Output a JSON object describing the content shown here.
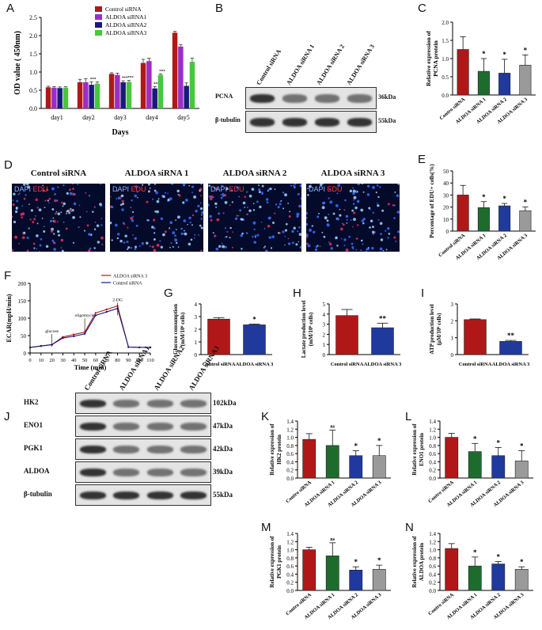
{
  "colors": {
    "control": "#b01818",
    "s1": "#9b2fc1",
    "s2": "#1a1a7a",
    "s3": "#46c83c",
    "green_bar": "#1e6b2e",
    "grey_bar": "#9a9a9a",
    "blue_bar": "#1f3a9c"
  },
  "panels": {
    "A": {
      "letter": "A"
    },
    "B": {
      "letter": "B",
      "lanes": [
        "Control siRNA",
        "ALDOA siRNA 1",
        "ALDOA siRNA 2",
        "ALDOA siRNA 3"
      ],
      "rows": [
        {
          "label": "PCNA",
          "size": "36kDa"
        },
        {
          "label": "β-tubulin",
          "size": "55kDa"
        }
      ]
    },
    "C": {
      "letter": "C"
    },
    "D": {
      "letter": "D",
      "titles": [
        "Control siRNA",
        "ALDOA siRNA 1",
        "ALDOA siRNA 2",
        "ALDOA siRNA 3"
      ],
      "dapi": "DAPI",
      "edu": "EDU"
    },
    "E": {
      "letter": "E"
    },
    "F": {
      "letter": "F"
    },
    "G": {
      "letter": "G"
    },
    "H": {
      "letter": "H"
    },
    "I": {
      "letter": "I"
    },
    "J": {
      "letter": "J",
      "lanes": [
        "Control siRNA",
        "ALDOA siRNA1",
        "ALDOA siRNA2",
        "ALDOA siRNA3"
      ],
      "rows": [
        {
          "label": "HK2",
          "size": "102kDa"
        },
        {
          "label": "ENO1",
          "size": "47kDa"
        },
        {
          "label": "PGK1",
          "size": "42kDa"
        },
        {
          "label": "ALDOA",
          "size": "39kDa"
        },
        {
          "label": "β-tubulin",
          "size": "55kDa"
        }
      ]
    },
    "K": {
      "letter": "K"
    },
    "L": {
      "letter": "L"
    },
    "M": {
      "letter": "M"
    },
    "N": {
      "letter": "N"
    }
  },
  "chart_data": [
    {
      "id": "A",
      "type": "bar",
      "ylabel": "OD value ( 450nm)",
      "xlabel": "Days",
      "categories": [
        "day1",
        "day2",
        "day3",
        "day4",
        "day5"
      ],
      "ylim": [
        0,
        2.5
      ],
      "yticks": [
        0.0,
        0.5,
        1.0,
        1.5,
        2.0,
        2.5
      ],
      "series": [
        {
          "name": "Control siRNA",
          "color": "#b01818",
          "values": [
            0.58,
            0.72,
            0.95,
            1.25,
            2.08
          ],
          "err": [
            0.03,
            0.08,
            0.03,
            0.1,
            0.04
          ]
        },
        {
          "name": "ALDOA siRNA1",
          "color": "#9b2fc1",
          "values": [
            0.57,
            0.72,
            0.92,
            1.3,
            1.7
          ],
          "err": [
            0.03,
            0.1,
            0.05,
            0.08,
            0.05
          ]
        },
        {
          "name": "ALDOA siRNA2",
          "color": "#1a1a7a",
          "values": [
            0.56,
            0.65,
            0.72,
            0.55,
            0.62
          ],
          "err": [
            0.03,
            0.08,
            0.04,
            0.05,
            0.08
          ]
        },
        {
          "name": "ALDOA siRNA3",
          "color": "#46c83c",
          "values": [
            0.57,
            0.68,
            0.73,
            0.92,
            1.28
          ],
          "err": [
            0.03,
            0.05,
            0.04,
            0.03,
            0.1
          ]
        }
      ],
      "annotations": [
        [
          "",
          "",
          "",
          "",
          ""
        ],
        [
          "",
          "",
          "",
          "",
          ""
        ],
        [
          "",
          "***",
          "***",
          "***"
        ],
        [
          "",
          "",
          "***",
          "***"
        ],
        [
          "***",
          "***",
          "***",
          "***"
        ]
      ]
    },
    {
      "id": "C",
      "type": "bar",
      "ylabel": "Relative expression of PCNA protein",
      "categories": [
        "Contro siRNA",
        "ALDOA siRNA 1",
        "ALDOA siRNA 2",
        "ALDOA siRNA 3"
      ],
      "ylim": [
        0,
        2.0
      ],
      "yticks": [
        0.0,
        0.5,
        1.0,
        1.5,
        2.0
      ],
      "values": [
        1.25,
        0.65,
        0.6,
        0.82
      ],
      "err": [
        0.35,
        0.35,
        0.38,
        0.28
      ],
      "marks": [
        "",
        "*",
        "*",
        "*"
      ]
    },
    {
      "id": "E",
      "type": "bar",
      "ylabel": "Percentage of EDU+ cells(%)",
      "categories": [
        "Control siRNA",
        "ALDOA siRNA 1",
        "ALDOA siRNA 2",
        "ALDOA siRNA 3"
      ],
      "ylim": [
        0,
        50
      ],
      "yticks": [
        0,
        10,
        20,
        30,
        40,
        50
      ],
      "values": [
        30,
        19.5,
        21,
        17
      ],
      "err": [
        8,
        5,
        2,
        3
      ],
      "marks": [
        "",
        "*",
        "*",
        "*"
      ]
    },
    {
      "id": "F",
      "type": "line",
      "ylabel": "ECAR(mpH/min)",
      "xlabel": "Time (min)",
      "xlim": [
        0,
        110
      ],
      "ylim": [
        0,
        200
      ],
      "xticks": [
        0,
        10,
        20,
        30,
        40,
        50,
        60,
        70,
        80,
        90,
        100,
        110
      ],
      "yticks": [
        0,
        50,
        100,
        150,
        200
      ],
      "x": [
        0,
        10,
        20,
        30,
        40,
        50,
        60,
        70,
        80,
        90,
        100,
        110
      ],
      "series": [
        {
          "name": "ALDOA siRNA 3",
          "values": [
            16,
            20,
            24,
            46,
            53,
            60,
            115,
            125,
            135,
            17,
            16,
            16
          ]
        },
        {
          "name": "Control siRNA",
          "values": [
            16,
            20,
            24,
            43,
            48,
            55,
            108,
            118,
            128,
            17,
            16,
            16
          ]
        }
      ],
      "annotations": [
        "glucose",
        "oligomycin",
        "2-DG"
      ]
    },
    {
      "id": "G",
      "type": "bar",
      "ylabel": "Glucose consumption (mM/10⁶ cells)",
      "categories": [
        "Control siRNA",
        "ALDOA siRNA 3"
      ],
      "ylim": [
        0,
        4
      ],
      "yticks": [
        0,
        1,
        2,
        3,
        4
      ],
      "values": [
        2.8,
        2.35
      ],
      "err": [
        0.12,
        0.06
      ],
      "marks": [
        "",
        "*"
      ]
    },
    {
      "id": "H",
      "type": "bar",
      "ylabel": "Lactate production level (mM/10⁶ cells)",
      "categories": [
        "Control siRNA",
        "ALDOA siRNA 3"
      ],
      "ylim": [
        0,
        5
      ],
      "yticks": [
        0,
        1,
        2,
        3,
        4,
        5
      ],
      "values": [
        3.85,
        2.65
      ],
      "err": [
        0.6,
        0.45
      ],
      "marks": [
        "",
        "**"
      ]
    },
    {
      "id": "I",
      "type": "bar",
      "ylabel": "ATP production level (μM/10⁶ cells)",
      "categories": [
        "Control siRNA",
        "ALDOA siRNA 3"
      ],
      "ylim": [
        0,
        3
      ],
      "yticks": [
        0,
        1,
        2,
        3
      ],
      "values": [
        2.07,
        0.78
      ],
      "err": [
        0.04,
        0.06
      ],
      "marks": [
        "",
        "**"
      ]
    },
    {
      "id": "K",
      "type": "bar",
      "ylabel": "Relative expression of HK2 protein",
      "categories": [
        "Contro siRNA",
        "ALDOA siRNA 1",
        "ALDOA siRNA 2",
        "ALDOA siRNA 3"
      ],
      "ylim": [
        0,
        1.4
      ],
      "yticks": [
        0.0,
        0.2,
        0.4,
        0.6,
        0.8,
        1.0,
        1.2,
        1.4
      ],
      "values": [
        0.95,
        0.8,
        0.55,
        0.55
      ],
      "err": [
        0.14,
        0.38,
        0.12,
        0.25
      ],
      "marks": [
        "",
        "ns",
        "*",
        "*"
      ]
    },
    {
      "id": "L",
      "type": "bar",
      "ylabel": "Relative expression of ENO1 protein",
      "categories": [
        "Contro siRNA",
        "ALDOA siRNA 1",
        "ALDOA siRNA 2",
        "ALDOA siRNA 3"
      ],
      "ylim": [
        0,
        1.4
      ],
      "yticks": [
        0.0,
        0.2,
        0.4,
        0.6,
        0.8,
        1.0,
        1.2,
        1.4
      ],
      "values": [
        1.0,
        0.65,
        0.55,
        0.42
      ],
      "err": [
        0.1,
        0.2,
        0.2,
        0.25
      ],
      "marks": [
        "",
        "*",
        "*",
        "*"
      ]
    },
    {
      "id": "M",
      "type": "bar",
      "ylabel": "Relative expression of PGK1 protein",
      "categories": [
        "Contro siRNA",
        "ALDOA siRNA 1",
        "ALDOA siRNA 2",
        "ALDOA siRNA 3"
      ],
      "ylim": [
        0,
        1.4
      ],
      "yticks": [
        0.0,
        0.2,
        0.4,
        0.6,
        0.8,
        1.0,
        1.2,
        1.4
      ],
      "values": [
        1.0,
        0.85,
        0.5,
        0.52
      ],
      "err": [
        0.06,
        0.32,
        0.08,
        0.1
      ],
      "marks": [
        "",
        "ns",
        "*",
        "*"
      ]
    },
    {
      "id": "N",
      "type": "bar",
      "ylabel": "Relative expression of ALDOA protein",
      "categories": [
        "Contro siRNA",
        "ALDOA siRNA 1",
        "ALDOA siRNA 2",
        "ALDOA siRNA 3"
      ],
      "ylim": [
        0,
        1.4
      ],
      "yticks": [
        0.0,
        0.2,
        0.4,
        0.6,
        0.8,
        1.0,
        1.2,
        1.4
      ],
      "values": [
        1.03,
        0.6,
        0.65,
        0.52
      ],
      "err": [
        0.12,
        0.22,
        0.06,
        0.06
      ],
      "marks": [
        "",
        "*",
        "*",
        "*"
      ]
    }
  ]
}
